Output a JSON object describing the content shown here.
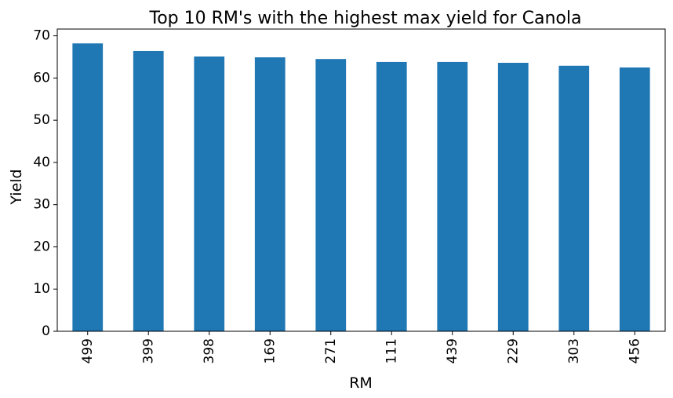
{
  "chart_data": {
    "type": "bar",
    "title": "Top 10 RM's with the highest max yield for Canola",
    "xlabel": "RM",
    "ylabel": "Yield",
    "categories": [
      "499",
      "399",
      "398",
      "169",
      "271",
      "111",
      "439",
      "229",
      "303",
      "456"
    ],
    "values": [
      68.2,
      66.4,
      65.1,
      64.9,
      64.5,
      63.8,
      63.8,
      63.6,
      62.9,
      62.5
    ],
    "ylim": [
      0,
      71.6
    ],
    "yticks": [
      0,
      10,
      20,
      30,
      40,
      50,
      60,
      70
    ],
    "grid": false,
    "legend": "none",
    "bar_color": "#1f77b4"
  }
}
